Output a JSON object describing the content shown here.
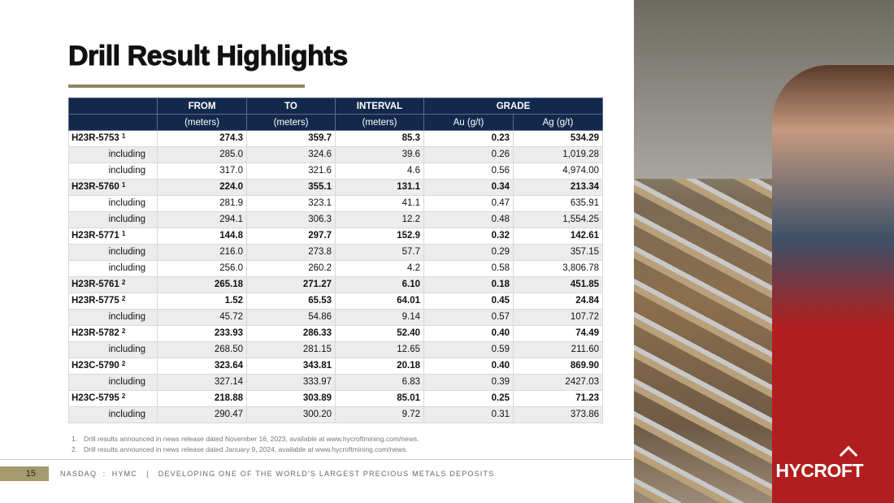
{
  "title": "Drill Result Highlights",
  "table": {
    "header1": [
      "",
      "FROM",
      "TO",
      "INTERVAL",
      "GRADE"
    ],
    "header2": [
      "",
      "(meters)",
      "(meters)",
      "(meters)",
      "Au (g/t)",
      "Ag (g/t)"
    ],
    "rows": [
      {
        "label": "H23R-5753",
        "note": "1",
        "main": true,
        "values": [
          "274.3",
          "359.7",
          "85.3",
          "0.23",
          "534.29"
        ]
      },
      {
        "label": "including",
        "note": "",
        "main": false,
        "values": [
          "285.0",
          "324.6",
          "39.6",
          "0.26",
          "1,019.28"
        ]
      },
      {
        "label": "including",
        "note": "",
        "main": false,
        "values": [
          "317.0",
          "321.6",
          "4.6",
          "0.56",
          "4,974.00"
        ]
      },
      {
        "label": "H23R-5760",
        "note": "1",
        "main": true,
        "values": [
          "224.0",
          "355.1",
          "131.1",
          "0.34",
          "213.34"
        ]
      },
      {
        "label": "including",
        "note": "",
        "main": false,
        "values": [
          "281.9",
          "323.1",
          "41.1",
          "0.47",
          "635.91"
        ]
      },
      {
        "label": "including",
        "note": "",
        "main": false,
        "values": [
          "294.1",
          "306.3",
          "12.2",
          "0.48",
          "1,554.25"
        ]
      },
      {
        "label": "H23R-5771",
        "note": "1",
        "main": true,
        "values": [
          "144.8",
          "297.7",
          "152.9",
          "0.32",
          "142.61"
        ]
      },
      {
        "label": "including",
        "note": "",
        "main": false,
        "values": [
          "216.0",
          "273.8",
          "57.7",
          "0.29",
          "357.15"
        ]
      },
      {
        "label": "including",
        "note": "",
        "main": false,
        "values": [
          "256.0",
          "260.2",
          "4.2",
          "0.58",
          "3,806.78"
        ]
      },
      {
        "label": "H23R-5761",
        "note": "2",
        "main": true,
        "values": [
          "265.18",
          "271.27",
          "6.10",
          "0.18",
          "451.85"
        ]
      },
      {
        "label": "H23R-5775",
        "note": "2",
        "main": true,
        "values": [
          "1.52",
          "65.53",
          "64.01",
          "0.45",
          "24.84"
        ]
      },
      {
        "label": "including",
        "note": "",
        "main": false,
        "values": [
          "45.72",
          "54.86",
          "9.14",
          "0.57",
          "107.72"
        ]
      },
      {
        "label": "H23R-5782",
        "note": "2",
        "main": true,
        "values": [
          "233.93",
          "286.33",
          "52.40",
          "0.40",
          "74.49"
        ]
      },
      {
        "label": "including",
        "note": "",
        "main": false,
        "values": [
          "268.50",
          "281.15",
          "12.65",
          "0.59",
          "211.60"
        ]
      },
      {
        "label": "H23C-5790",
        "note": "2",
        "main": true,
        "values": [
          "323.64",
          "343.81",
          "20.18",
          "0.40",
          "869.90"
        ]
      },
      {
        "label": "including",
        "note": "",
        "main": false,
        "values": [
          "327.14",
          "333.97",
          "6.83",
          "0.39",
          "2427.03"
        ]
      },
      {
        "label": "H23C-5795",
        "note": "2",
        "main": true,
        "values": [
          "218.88",
          "303.89",
          "85.01",
          "0.25",
          "71.23"
        ]
      },
      {
        "label": "including",
        "note": "",
        "main": false,
        "values": [
          "290.47",
          "300.20",
          "9.72",
          "0.31",
          "373.86"
        ]
      }
    ]
  },
  "footnotes": [
    {
      "num": "1.",
      "text": "Drill results announced in news release dated November 16, 2023, available at www.hycroftmining.com/news."
    },
    {
      "num": "2.",
      "text": "Drill results announced in news release dated January 9, 2024, available at www.hycroftmining.com/news."
    }
  ],
  "footer": {
    "page": "15",
    "text": "NASDAQ  :  HYMC   |   DEVELOPING ONE OF THE WORLD'S LARGEST PRECIOUS METALS DEPOSITS"
  },
  "logo": "HYCROFT",
  "colors": {
    "header": "#13294b",
    "accent": "#a59a6c",
    "alt_row": "#ececec"
  }
}
